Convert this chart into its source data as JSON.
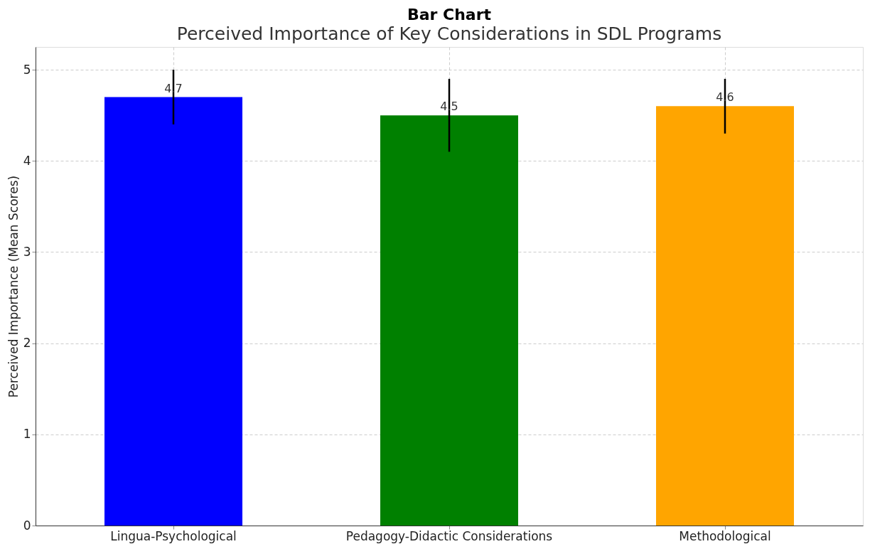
{
  "chart_data": {
    "type": "bar",
    "title": "Bar Chart",
    "subtitle": "Perceived Importance of Key Considerations in SDL Programs",
    "ylabel": "Perceived Importance (Mean Scores)",
    "categories": [
      "Lingua-Psychological",
      "Pedagogy-Didactic Considerations",
      "Methodological"
    ],
    "values": [
      4.7,
      4.5,
      4.6
    ],
    "colors": [
      "#0000ff",
      "#008000",
      "#ffa500"
    ],
    "errors": [
      0.3,
      0.4,
      0.3
    ],
    "ylim": [
      0,
      5.25
    ],
    "yticks": [
      0,
      1,
      2,
      3,
      4,
      5
    ],
    "grid": true,
    "data_labels": true
  }
}
